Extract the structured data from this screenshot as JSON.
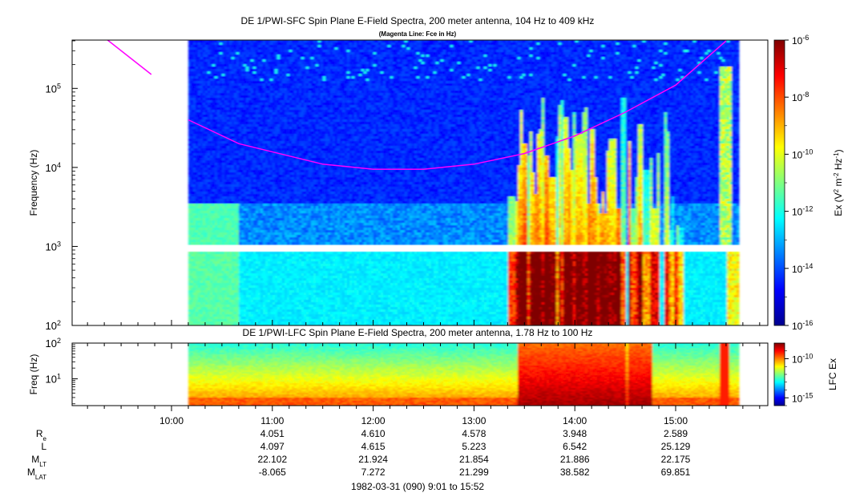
{
  "chart_data": [
    {
      "type": "heatmap",
      "title": "DE 1/PWI-SFC  Spin Plane E-Field Spectra, 200 meter antenna, 104 Hz to 409 kHz",
      "subtitle": "(Magenta Line: Fce in Hz)",
      "ylabel": "Frequency (Hz)",
      "y_scale": "log",
      "ylim": [
        100,
        409000
      ],
      "y_ticks": [
        {
          "value": 100,
          "base": "10",
          "exp": "2"
        },
        {
          "value": 1000,
          "base": "10",
          "exp": "3"
        },
        {
          "value": 10000,
          "base": "10",
          "exp": "4"
        },
        {
          "value": 100000,
          "base": "10",
          "exp": "5"
        }
      ],
      "data_time_range": [
        "10:10",
        "15:37"
      ],
      "colorbar": {
        "label_pre": "Ex (V",
        "label_sup1": "2",
        "label_mid": " m",
        "label_sup2": "-2",
        "label_mid2": " Hz",
        "label_sup3": "-1",
        "label_post": ")",
        "scale": "log",
        "range": [
          1e-16,
          1e-06
        ],
        "ticks": [
          {
            "value": 1e-06,
            "base": "10",
            "exp": "-6"
          },
          {
            "value": 1e-08,
            "base": "10",
            "exp": "-8"
          },
          {
            "value": 1e-10,
            "base": "10",
            "exp": "-10"
          },
          {
            "value": 1e-12,
            "base": "10",
            "exp": "-12"
          },
          {
            "value": 1e-14,
            "base": "10",
            "exp": "-14"
          },
          {
            "value": 1e-16,
            "base": "10",
            "exp": "-16"
          }
        ]
      },
      "fce_line": {
        "color": "#ff00ff",
        "points": [
          {
            "t": "09:22",
            "f": 409000
          },
          {
            "t": "09:48",
            "f": 150000
          },
          {
            "t": "10:10",
            "f": 40000
          },
          {
            "t": "10:40",
            "f": 20000
          },
          {
            "t": "11:30",
            "f": 11000
          },
          {
            "t": "12:00",
            "f": 9500
          },
          {
            "t": "12:30",
            "f": 9500
          },
          {
            "t": "13:00",
            "f": 11000
          },
          {
            "t": "13:30",
            "f": 15000
          },
          {
            "t": "14:00",
            "f": 25000
          },
          {
            "t": "14:30",
            "f": 50000
          },
          {
            "t": "15:00",
            "f": 110000
          },
          {
            "t": "15:30",
            "f": 400000
          }
        ]
      }
    },
    {
      "type": "heatmap",
      "title": "DE 1/PWI-LFC  Spin Plane E-Field Spectra, 200 meter antenna, 1.78 Hz to 100 Hz",
      "ylabel": "Freq (Hz)",
      "y_scale": "log",
      "ylim": [
        1.78,
        100
      ],
      "y_ticks": [
        {
          "value": 10,
          "base": "10",
          "exp": "1"
        },
        {
          "value": 100,
          "base": "10",
          "exp": "2"
        }
      ],
      "data_time_range": [
        "10:10",
        "15:37"
      ],
      "colorbar": {
        "label": "LFC Ex",
        "scale": "log",
        "range": [
          1e-16,
          1e-08
        ],
        "ticks": [
          {
            "value": 1e-10,
            "base": "10",
            "exp": "-10"
          },
          {
            "value": 1e-15,
            "base": "10",
            "exp": "-15"
          }
        ]
      }
    }
  ],
  "time_axis": {
    "ticks": [
      "10:00",
      "11:00",
      "12:00",
      "13:00",
      "14:00",
      "15:00"
    ]
  },
  "ephemeris": {
    "rows": [
      {
        "label": "R",
        "sub": "e",
        "values": [
          "4.051",
          "4.610",
          "4.578",
          "3.948",
          "2.589"
        ]
      },
      {
        "label": "L",
        "sub": "",
        "values": [
          "4.097",
          "4.615",
          "5.223",
          "6.542",
          "25.129"
        ]
      },
      {
        "label": "M",
        "sub": "LT",
        "values": [
          "22.102",
          "21.924",
          "21.854",
          "21.886",
          "22.175"
        ]
      },
      {
        "label": "M",
        "sub": "LAT",
        "values": [
          "-8.065",
          "7.272",
          "21.299",
          "38.582",
          "69.851"
        ]
      }
    ],
    "columns_at": [
      "11:00",
      "12:00",
      "13:00",
      "14:00",
      "15:00"
    ]
  },
  "footer": "1982-03-31 (090) 9:01 to 15:52"
}
